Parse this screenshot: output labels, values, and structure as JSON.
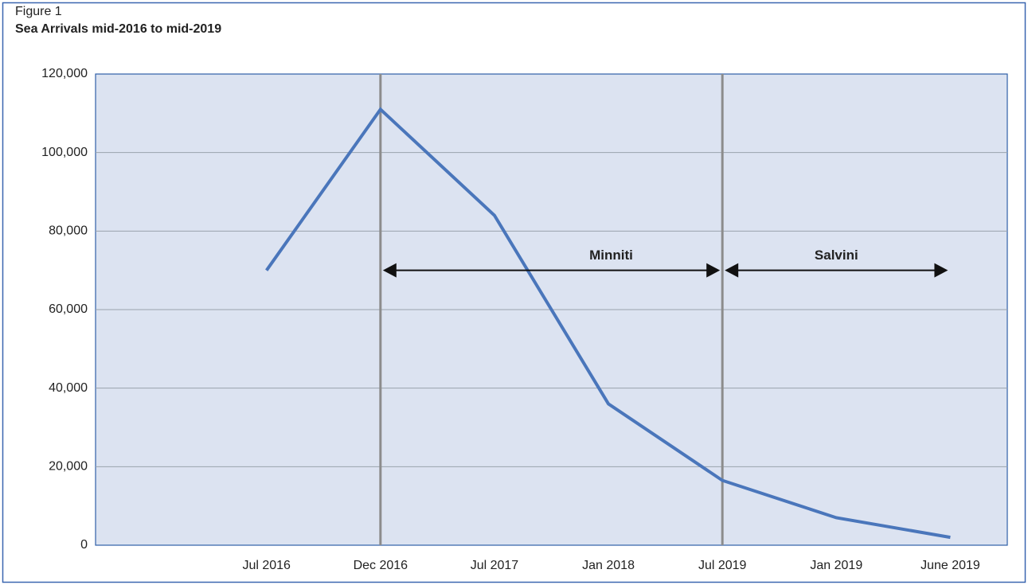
{
  "chart_data": {
    "type": "line",
    "label": "Figure 1",
    "title": "Sea Arrivals mid-2016 to mid-2019",
    "categories": [
      null,
      "Jul 2016",
      "Dec 2016",
      "Jul 2017",
      "Jan 2018",
      "Jul 2019",
      "Jan 2019",
      "June 2019"
    ],
    "values": [
      null,
      70000,
      111000,
      84000,
      36000,
      16500,
      7000,
      2000
    ],
    "color": "#4a76bb",
    "ylim": [
      0,
      120000
    ],
    "yticks": [
      0,
      {
        "value": 20000,
        "label": "20,000"
      },
      {
        "value": 40000,
        "label": "40,000"
      },
      {
        "value": 60000,
        "label": "60,000"
      },
      {
        "value": 80000,
        "label": "80,000"
      },
      {
        "value": 100000,
        "label": "100,000"
      },
      {
        "value": 120000,
        "label": "120,000"
      }
    ],
    "grid": true,
    "annotations": [
      {
        "text": "Minniti",
        "from": "Dec 2016",
        "to": "Jul 2019",
        "y": 70000
      },
      {
        "text": "Salvini",
        "from": "Jul 2019",
        "to": "June 2019",
        "y": 70000
      }
    ]
  }
}
